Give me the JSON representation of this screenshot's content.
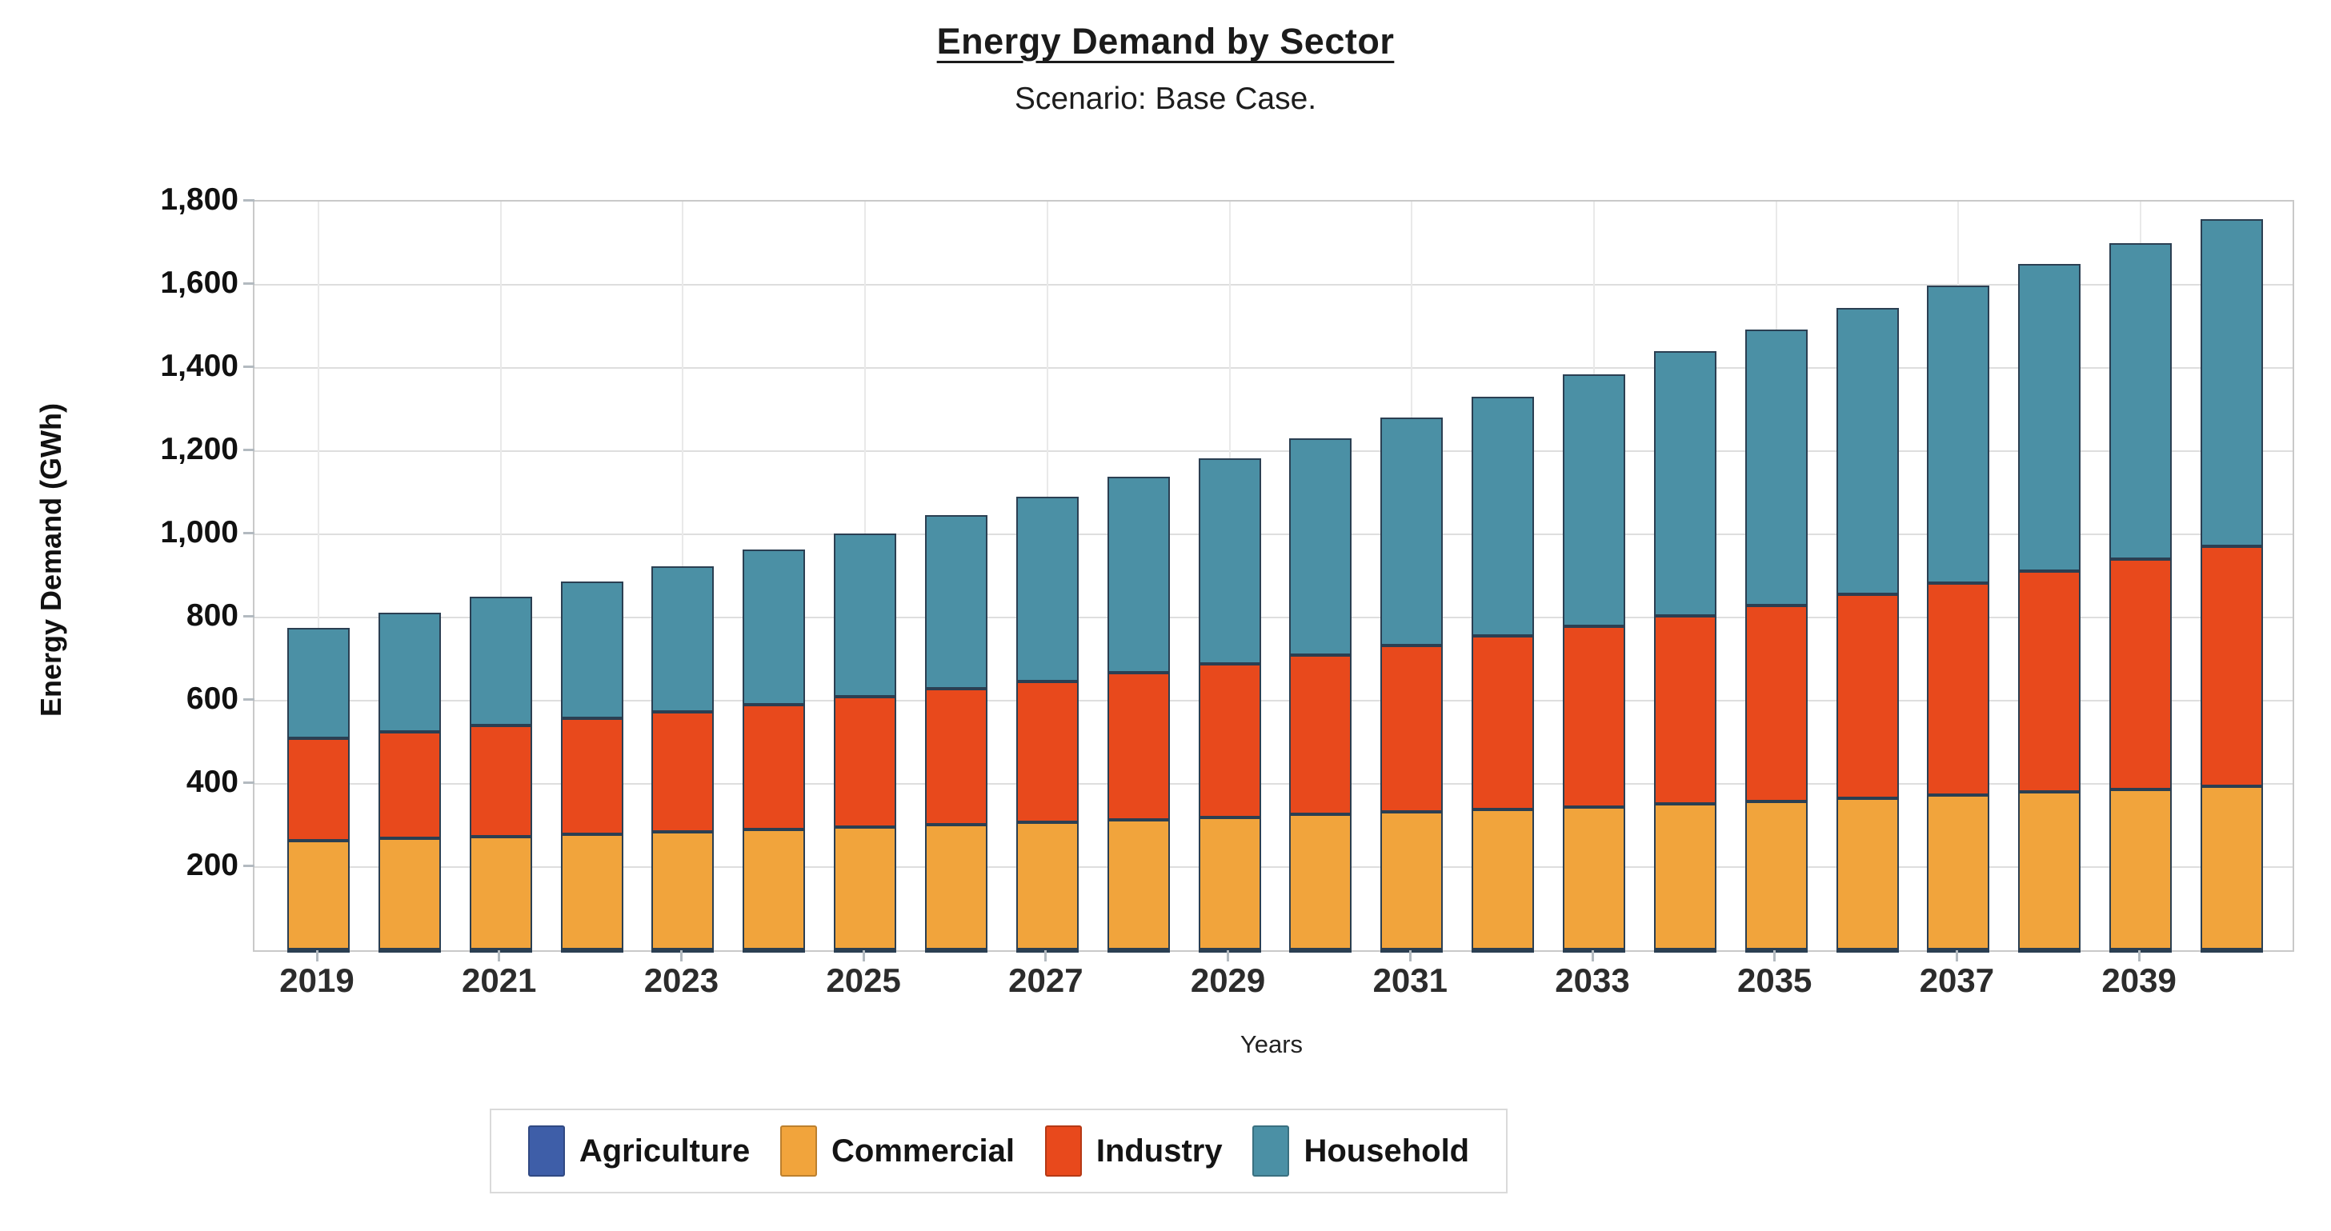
{
  "chart_data": {
    "type": "bar",
    "stacked": true,
    "title": "Energy Demand by Sector",
    "subtitle": "Scenario: Base Case.",
    "xlabel": "Years",
    "ylabel": "Energy Demand (GWh)",
    "ylim": [
      0,
      1800
    ],
    "ytick_step": 200,
    "grid": true,
    "legend_position": "bottom",
    "bar_border_color": "#2b3f52",
    "categories": [
      2019,
      2020,
      2021,
      2022,
      2023,
      2024,
      2025,
      2026,
      2027,
      2028,
      2029,
      2030,
      2031,
      2032,
      2033,
      2034,
      2035,
      2036,
      2037,
      2038,
      2039,
      2040
    ],
    "xtick_labels": [
      "2019",
      "2021",
      "2023",
      "2025",
      "2027",
      "2029",
      "2031",
      "2033",
      "2035",
      "2037",
      "2039"
    ],
    "series": [
      {
        "name": "Agriculture",
        "color": "#3e5ea8",
        "values": [
          2,
          2,
          2,
          2,
          2,
          2,
          2,
          2,
          2,
          2,
          2,
          2,
          2,
          2,
          2,
          2,
          2,
          2,
          2,
          2,
          2,
          2
        ]
      },
      {
        "name": "Commercial",
        "color": "#f1a43c",
        "values": [
          262,
          267,
          272,
          277,
          283,
          288,
          294,
          300,
          305,
          311,
          317,
          324,
          330,
          336,
          343,
          350,
          356,
          363,
          371,
          378,
          385,
          393
        ]
      },
      {
        "name": "Industry",
        "color": "#e8491c",
        "values": [
          246,
          256,
          267,
          278,
          289,
          301,
          314,
          327,
          340,
          354,
          369,
          384,
          400,
          417,
          434,
          452,
          470,
          490,
          510,
          531,
          553,
          576
        ]
      },
      {
        "name": "Household",
        "color": "#4b90a5",
        "values": [
          265,
          287,
          309,
          329,
          349,
          372,
          392,
          417,
          444,
          471,
          495,
          520,
          548,
          575,
          606,
          636,
          664,
          690,
          715,
          739,
          760,
          786
        ]
      }
    ],
    "totals": [
      775,
      812,
      850,
      886,
      923,
      963,
      1002,
      1046,
      1091,
      1138,
      1183,
      1230,
      1280,
      1330,
      1385,
      1440,
      1492,
      1545,
      1598,
      1650,
      1700,
      1757
    ]
  }
}
